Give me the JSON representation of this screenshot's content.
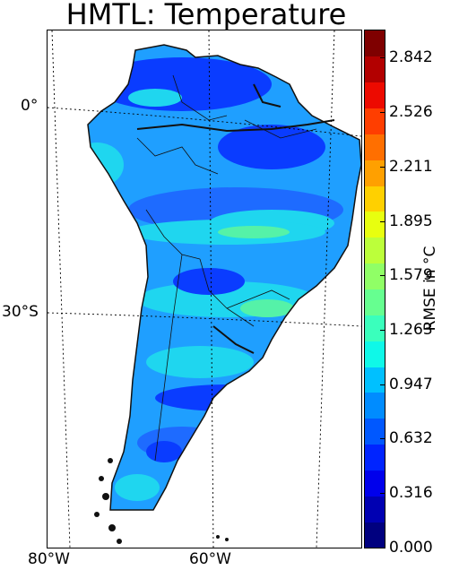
{
  "title": "HMTL: Temperature",
  "colorbar": {
    "label": "RMSE in °C",
    "ticks": [
      "0.000",
      "0.316",
      "0.632",
      "0.947",
      "1.263",
      "1.579",
      "1.895",
      "2.211",
      "2.526",
      "2.842"
    ],
    "range": [
      0.0,
      3.0
    ],
    "colors": [
      "#00007f",
      "#0000b2",
      "#0000ec",
      "#0024ff",
      "#0058ff",
      "#008cff",
      "#00c0ff",
      "#0ff8e8",
      "#3affbc",
      "#66ff90",
      "#90ff66",
      "#bcff3a",
      "#e8ff0f",
      "#ffd000",
      "#ffa000",
      "#ff6f00",
      "#ff3e00",
      "#ed0a00",
      "#b20000",
      "#7f0000"
    ]
  },
  "map": {
    "latitude_labels": [
      "0°",
      "30°S"
    ],
    "longitude_labels": [
      "80°W",
      "60°W"
    ],
    "field_colors": {
      "low": "#0a3cff",
      "mid_low": "#1e6bff",
      "mid": "#1f9fff",
      "high": "#1fd6ef",
      "peak": "#55f2a8"
    }
  }
}
